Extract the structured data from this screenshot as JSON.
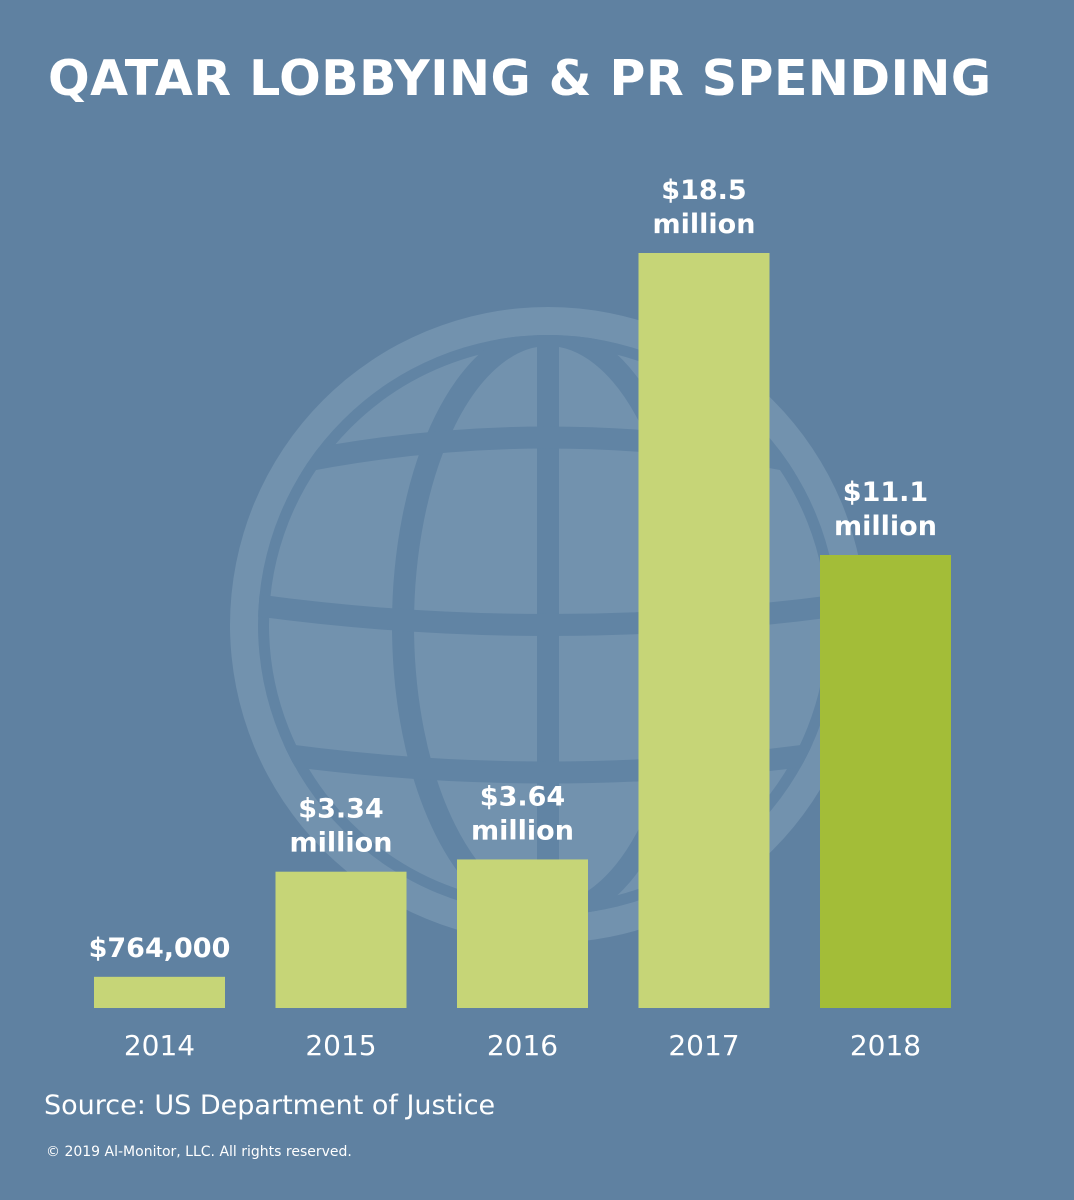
{
  "colors": {
    "background": "#5f81a1",
    "bar": "#c6d577",
    "bar_highlight": "#a3bd38",
    "globe": "#7292ae",
    "text": "#ffffff"
  },
  "icons": {
    "background": "globe-icon"
  },
  "chart_data": {
    "type": "bar",
    "title": "QATAR LOBBYING & PR SPENDING",
    "xlabel": "",
    "ylabel": "",
    "categories": [
      "2014",
      "2015",
      "2016",
      "2017",
      "2018"
    ],
    "values": [
      764000,
      3340000,
      3640000,
      18500000,
      11100000
    ],
    "value_labels": [
      [
        "$764,000"
      ],
      [
        "$3.34",
        "million"
      ],
      [
        "$3.64",
        "million"
      ],
      [
        "$18.5",
        "million"
      ],
      [
        "$11.1",
        "million"
      ]
    ],
    "highlight_index": 4,
    "ylim": [
      0,
      18500000
    ],
    "grid": false,
    "legend": "none"
  },
  "source": "Source: US Department of Justice",
  "copyright": "© 2019 Al-Monitor, LLC. All rights reserved."
}
